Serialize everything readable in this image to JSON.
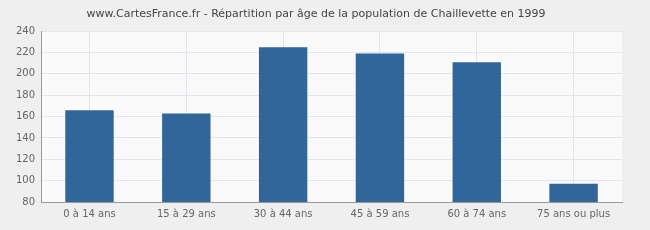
{
  "chart_data": {
    "type": "bar",
    "title": "www.CartesFrance.fr - Répartition par âge de la population de Chaillevette en 1999",
    "categories": [
      "0 à 14 ans",
      "15 à 29 ans",
      "30 à 44 ans",
      "45 à 59 ans",
      "60 à 74 ans",
      "75 ans ou plus"
    ],
    "values": [
      166,
      163,
      225,
      219,
      211,
      97
    ],
    "color": "#31669a",
    "ylim": [
      80,
      240
    ],
    "yticks": [
      80,
      100,
      120,
      140,
      160,
      180,
      200,
      220,
      240
    ],
    "grid": true
  }
}
